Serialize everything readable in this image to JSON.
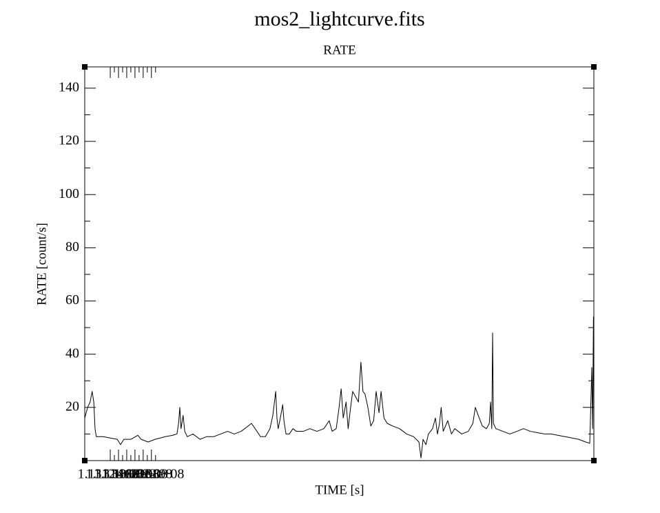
{
  "chart_data": {
    "type": "line",
    "title": "mos2_lightcurve.fits",
    "subtitle": "RATE",
    "xlabel": "TIME [s]",
    "ylabel": "RATE [count/s]",
    "color": "#000000",
    "xlim": [
      113058000,
      114295000
    ],
    "ylim": [
      0,
      148
    ],
    "xticks": [
      {
        "value": 113120000,
        "label": "1.1312e+08"
      },
      {
        "value": 113140000,
        "label": "1.1314e+08"
      },
      {
        "value": 113160000,
        "label": "1.1316e+08"
      },
      {
        "value": 113180000,
        "label": "1.1318e+08"
      },
      {
        "value": 113200000,
        "label": "1.132e+08"
      },
      {
        "value": 113220000,
        "label": "1.1322e+08"
      }
    ],
    "xminorticks": [
      113130000,
      113150000,
      113170000,
      113190000,
      113210000,
      113230000
    ],
    "yticks": [
      20,
      40,
      60,
      80,
      100,
      120,
      140
    ],
    "yminorticks": [
      10,
      30,
      50,
      70,
      90,
      110,
      130
    ],
    "x": [
      113058000,
      113065000,
      113071000,
      113076000,
      113080000,
      113083000,
      113086000,
      113103000,
      113120000,
      113137000,
      113145000,
      113153000,
      113170000,
      113187000,
      113195000,
      113212000,
      113229000,
      113254000,
      113271000,
      113282000,
      113286000,
      113289000,
      113292000,
      113297000,
      113301000,
      113307000,
      113321000,
      113338000,
      113354000,
      113371000,
      113388000,
      113405000,
      113421000,
      113438000,
      113455000,
      113463000,
      113472000,
      113485000,
      113497000,
      113508000,
      113515000,
      113522000,
      113525000,
      113528000,
      113532000,
      113539000,
      113542000,
      113547000,
      113555000,
      113564000,
      113572000,
      113589000,
      113605000,
      113622000,
      113639000,
      113652000,
      113659000,
      113669000,
      113676000,
      113681000,
      113686000,
      113693000,
      113698000,
      113704000,
      113709000,
      113716000,
      113723000,
      113729000,
      113734000,
      113739000,
      113746000,
      113753000,
      113760000,
      113766000,
      113773000,
      113778000,
      113785000,
      113793000,
      113806000,
      113823000,
      113840000,
      113857000,
      113870000,
      113875000,
      113880000,
      113887000,
      113893000,
      113903000,
      113910000,
      113915000,
      113920000,
      113924000,
      113929000,
      113940000,
      113949000,
      113957000,
      113974000,
      113990000,
      114001000,
      114007000,
      114014000,
      114024000,
      114034000,
      114041000,
      114044000,
      114047000,
      114049000,
      114051000,
      114057000,
      114074000,
      114091000,
      114108000,
      114124000,
      114141000,
      114158000,
      114175000,
      114191000,
      114208000,
      114225000,
      114242000,
      114258000,
      114275000,
      114285000,
      114290000,
      114292000,
      114294000,
      114295000
    ],
    "values": [
      16,
      20,
      22,
      26,
      22,
      12,
      9,
      9,
      8.5,
      8,
      6,
      8,
      8,
      9.5,
      8,
      7,
      8,
      9,
      9.5,
      10,
      14,
      20,
      12,
      17,
      11,
      9,
      10,
      8,
      9,
      9,
      10,
      11,
      10,
      11,
      13,
      14,
      12,
      9,
      9,
      12,
      17,
      26,
      16,
      12,
      15,
      21,
      15,
      10,
      10,
      12,
      11,
      11,
      12,
      11,
      12,
      15,
      11,
      12,
      20,
      27,
      16,
      22,
      12,
      20,
      26,
      24,
      22,
      37,
      26,
      25,
      20,
      13,
      15,
      26,
      18,
      26,
      16,
      14,
      13,
      12,
      10,
      9,
      7,
      1,
      8,
      6,
      10,
      12,
      16,
      10,
      14,
      20,
      11,
      15,
      10,
      12,
      10,
      11,
      14,
      20,
      17,
      13,
      12,
      14,
      22,
      12,
      48,
      14,
      12,
      11,
      10,
      11,
      12,
      11,
      10.5,
      10,
      10,
      9.5,
      9,
      8.5,
      8,
      7,
      6.5,
      35,
      12,
      54,
      10
    ]
  }
}
